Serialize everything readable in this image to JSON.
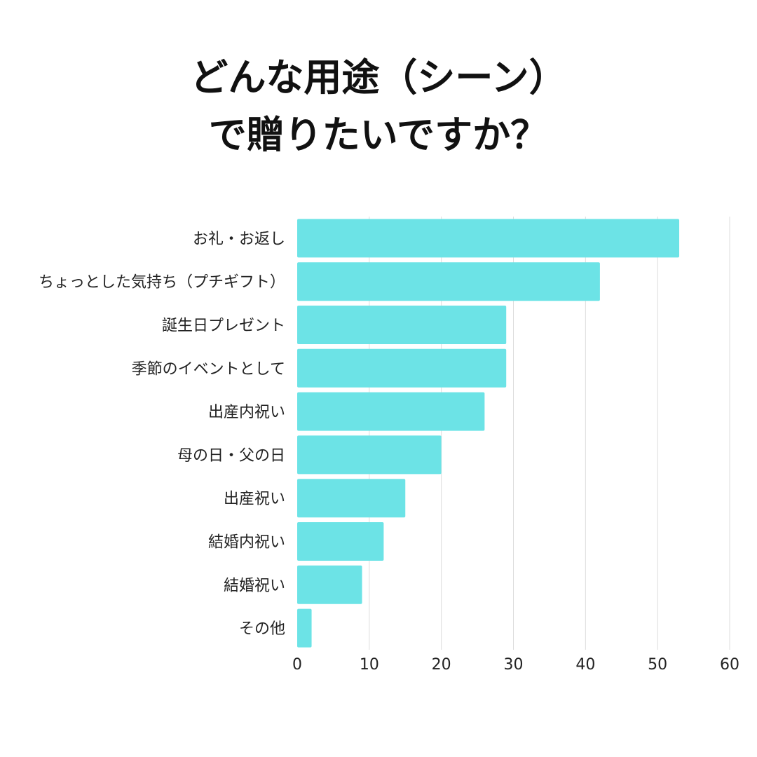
{
  "title": {
    "line1": "どんな用途（シーン）",
    "line2": "で贈りたいですか？"
  },
  "chart_data": {
    "type": "bar",
    "orientation": "horizontal",
    "categories": [
      "お礼・お返し",
      "ちょっとした気持ち（プチギフト）",
      "誕生日プレゼント",
      "季節のイベントとして",
      "出産内祝い",
      "母の日・父の日",
      "出産祝い",
      "結婚内祝い",
      "結婚祝い",
      "その他"
    ],
    "values": [
      53,
      42,
      29,
      29,
      26,
      20,
      15,
      12,
      9,
      2
    ],
    "xlim": [
      0,
      60
    ],
    "xticks": [
      "0",
      "10",
      "20",
      "30",
      "40",
      "50",
      "60"
    ],
    "grid": true,
    "bar_color": "#6ce3e6",
    "grid_color": "#dddddd",
    "text_color": "#222222"
  }
}
